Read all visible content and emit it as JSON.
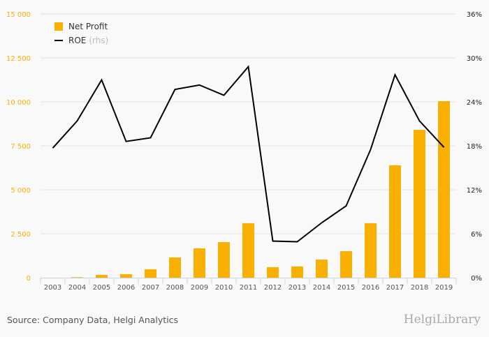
{
  "chart_data": {
    "type": "bar",
    "categories": [
      "2003",
      "2004",
      "2005",
      "2006",
      "2007",
      "2008",
      "2009",
      "2010",
      "2011",
      "2012",
      "2013",
      "2014",
      "2015",
      "2016",
      "2017",
      "2018",
      "2019"
    ],
    "series": [
      {
        "name": "Net Profit",
        "type": "bar",
        "axis": "left",
        "color": "#f9b000",
        "values": [
          0,
          30,
          160,
          200,
          480,
          1150,
          1670,
          2020,
          3100,
          600,
          640,
          1030,
          1510,
          3100,
          6390,
          8410,
          10040
        ]
      },
      {
        "name": "ROE",
        "suffix": "(rhs)",
        "type": "line",
        "axis": "right",
        "color": "#000000",
        "values": [
          17.7,
          21.4,
          27.0,
          18.6,
          19.1,
          25.7,
          26.3,
          24.9,
          28.8,
          5.0,
          4.9,
          7.5,
          9.8,
          17.5,
          27.7,
          21.4,
          17.8
        ]
      }
    ],
    "left_axis": {
      "ylim": [
        0,
        15000
      ],
      "ticks": [
        "0",
        "2 500",
        "5 000",
        "7 500",
        "10 000",
        "12 500",
        "15 000"
      ],
      "tick_values": [
        0,
        2500,
        5000,
        7500,
        10000,
        12500,
        15000
      ],
      "color": "#f9b000"
    },
    "right_axis": {
      "ylim": [
        0,
        36
      ],
      "ticks": [
        "0%",
        "6%",
        "12%",
        "18%",
        "24%",
        "30%",
        "36%"
      ],
      "tick_values": [
        0,
        6,
        12,
        18,
        24,
        30,
        36
      ]
    },
    "legend_placement": "top-left",
    "grid": true
  },
  "footer": {
    "source": "Source: Company Data, Helgi Analytics",
    "brand": "HelgiLibrary"
  }
}
